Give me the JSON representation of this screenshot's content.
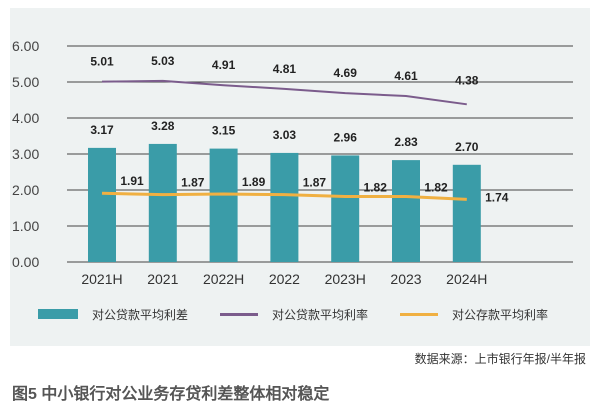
{
  "chart_data": {
    "type": "bar",
    "categories": [
      "2021H",
      "2021",
      "2022H",
      "2022",
      "2023H",
      "2023",
      "2024H"
    ],
    "series": [
      {
        "name": "对公贷款平均利差",
        "type": "bar",
        "color": "#3a9ca8",
        "values": [
          3.17,
          3.28,
          3.15,
          3.03,
          2.96,
          2.83,
          2.7
        ]
      },
      {
        "name": "对公贷款平均利率",
        "type": "line",
        "color": "#7b5c8c",
        "values": [
          5.01,
          5.03,
          4.91,
          4.81,
          4.69,
          4.61,
          4.38
        ]
      },
      {
        "name": "对公存款平均利率",
        "type": "line",
        "color": "#f0b042",
        "values": [
          1.91,
          1.87,
          1.89,
          1.87,
          1.82,
          1.82,
          1.74
        ]
      }
    ],
    "ylim": [
      0,
      6
    ],
    "yticks": [
      "0.00",
      "1.00",
      "2.00",
      "3.00",
      "4.00",
      "5.00",
      "6.00"
    ],
    "grid": true,
    "legend_position": "bottom"
  },
  "source": "数据来源：上市银行年报/半年报",
  "caption": "图5  中小银行对公业务存贷利差整体相对稳定"
}
